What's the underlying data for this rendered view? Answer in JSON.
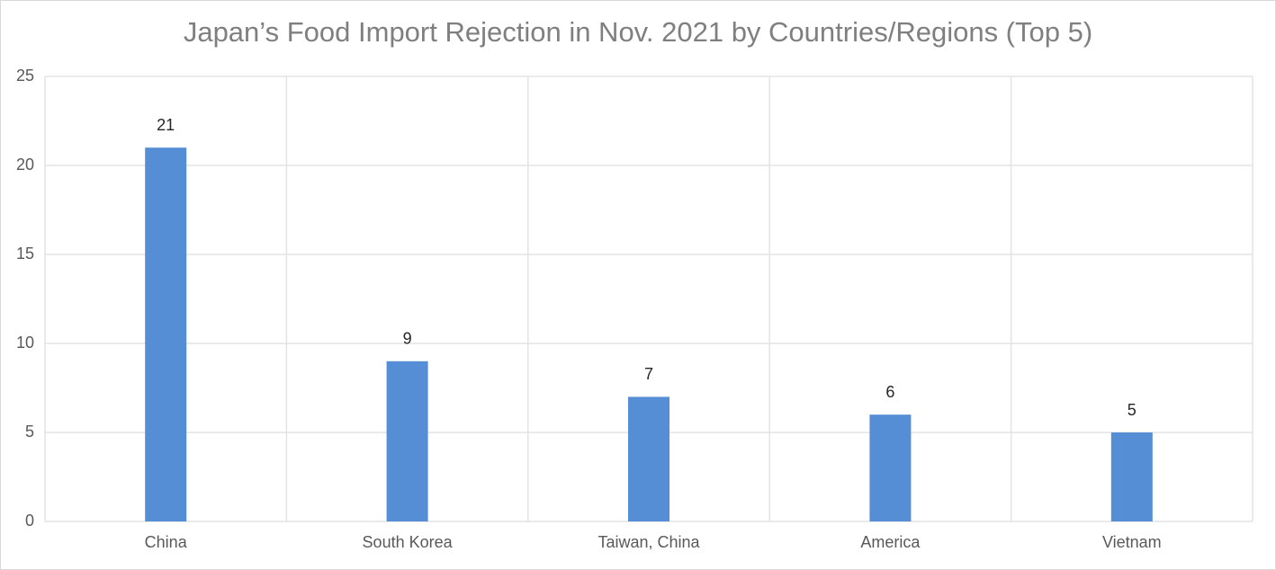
{
  "chart_data": {
    "type": "bar",
    "title": "Japan’s Food Import Rejection in Nov. 2021 by Countries/Regions (Top 5)",
    "categories": [
      "China",
      "South Korea",
      "Taiwan, China",
      "America",
      "Vietnam"
    ],
    "values": [
      21,
      9,
      7,
      6,
      5
    ],
    "color": "#558ed5",
    "ylim": [
      0,
      25
    ],
    "yticks": [
      0,
      5,
      10,
      15,
      20,
      25
    ],
    "grid": true
  }
}
